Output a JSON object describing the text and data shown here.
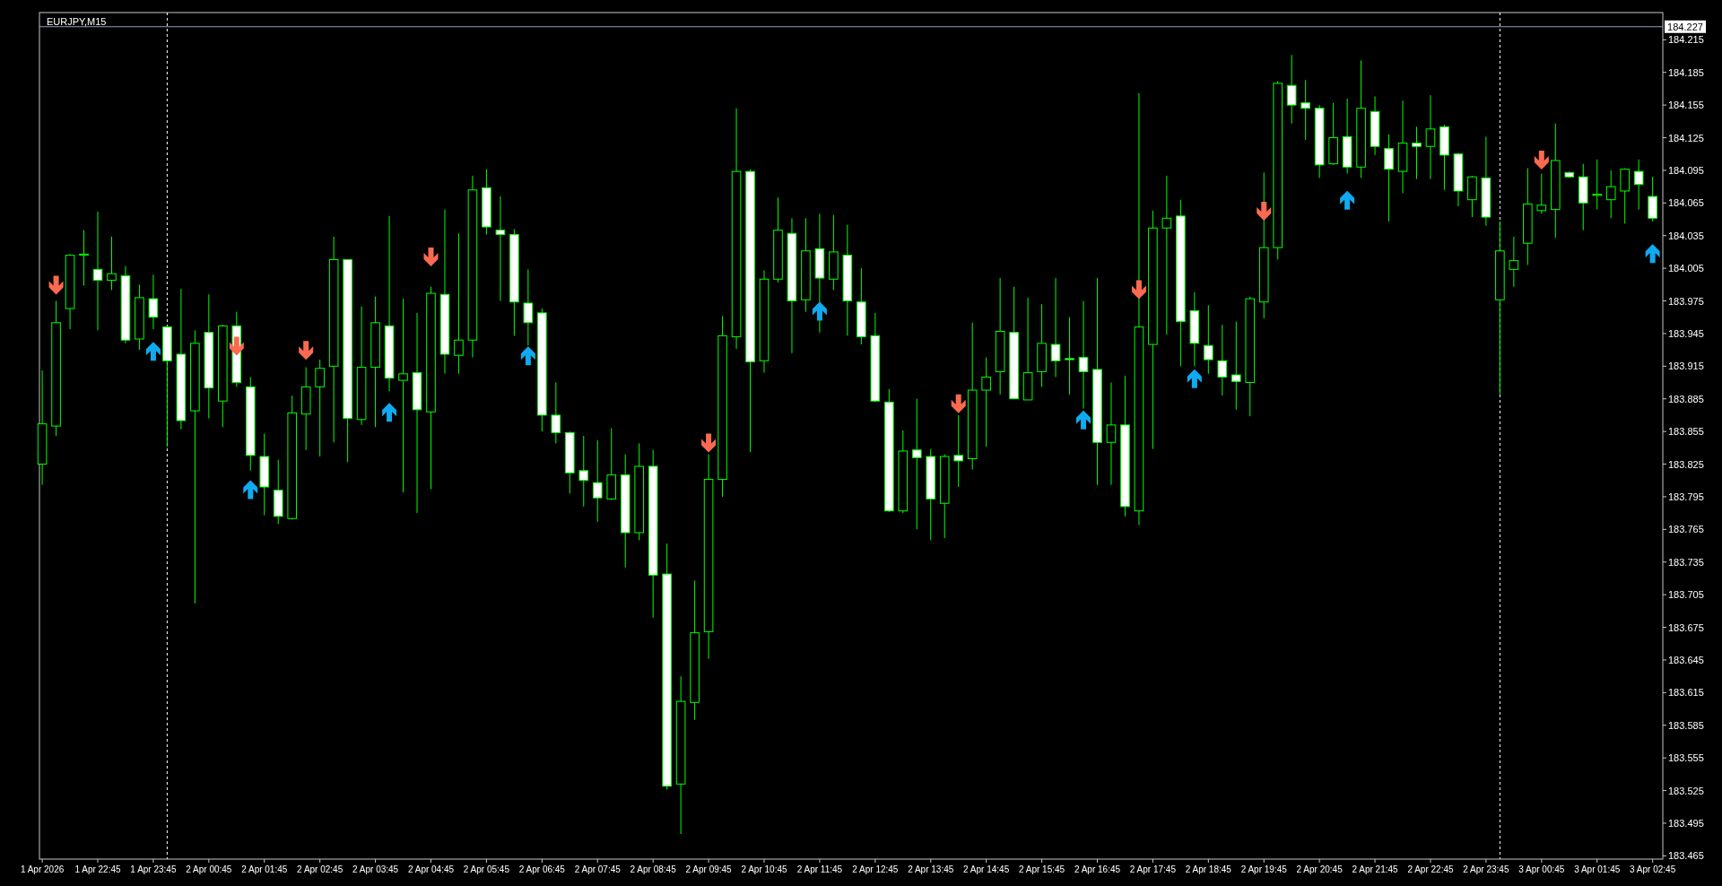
{
  "chart_data": {
    "type": "candlestick",
    "title": "EURJPY,M15",
    "color": "#00ff00",
    "x": [
      "2026-04-01T21:45",
      "2026-04-01T22:00",
      "2026-04-01T22:15",
      "2026-04-01T22:30",
      "2026-04-01T22:45",
      "2026-04-01T23:00",
      "2026-04-01T23:15",
      "2026-04-01T23:30",
      "2026-04-01T23:45",
      "2026-04-02T00:00",
      "2026-04-02T00:15",
      "2026-04-02T00:30",
      "2026-04-02T00:45",
      "2026-04-02T01:00",
      "2026-04-02T01:15",
      "2026-04-02T01:30",
      "2026-04-02T01:45",
      "2026-04-02T02:00",
      "2026-04-02T02:15",
      "2026-04-02T02:30",
      "2026-04-02T02:45",
      "2026-04-02T03:00",
      "2026-04-02T03:15",
      "2026-04-02T03:30",
      "2026-04-02T03:45",
      "2026-04-02T04:00",
      "2026-04-02T04:15",
      "2026-04-02T04:30",
      "2026-04-02T04:45",
      "2026-04-02T05:00",
      "2026-04-02T05:15",
      "2026-04-02T05:30",
      "2026-04-02T05:45",
      "2026-04-02T06:00",
      "2026-04-02T06:15",
      "2026-04-02T06:30",
      "2026-04-02T06:45",
      "2026-04-02T07:00",
      "2026-04-02T07:15",
      "2026-04-02T07:30",
      "2026-04-02T07:45",
      "2026-04-02T08:00",
      "2026-04-02T08:15",
      "2026-04-02T08:30",
      "2026-04-02T08:45",
      "2026-04-02T09:00",
      "2026-04-02T09:15",
      "2026-04-02T09:30",
      "2026-04-02T09:45",
      "2026-04-02T10:00",
      "2026-04-02T10:15",
      "2026-04-02T10:30",
      "2026-04-02T10:45",
      "2026-04-02T11:00",
      "2026-04-02T11:15",
      "2026-04-02T11:30",
      "2026-04-02T11:45",
      "2026-04-02T12:00",
      "2026-04-02T12:15",
      "2026-04-02T12:30",
      "2026-04-02T12:45",
      "2026-04-02T13:00",
      "2026-04-02T13:15",
      "2026-04-02T13:30",
      "2026-04-02T13:45",
      "2026-04-02T14:00",
      "2026-04-02T14:15",
      "2026-04-02T14:30",
      "2026-04-02T14:45",
      "2026-04-02T15:00",
      "2026-04-02T15:15",
      "2026-04-02T15:30",
      "2026-04-02T15:45",
      "2026-04-02T16:00",
      "2026-04-02T16:15",
      "2026-04-02T16:30",
      "2026-04-02T16:45",
      "2026-04-02T17:00",
      "2026-04-02T17:15",
      "2026-04-02T17:30",
      "2026-04-02T17:45",
      "2026-04-02T18:00",
      "2026-04-02T18:15",
      "2026-04-02T18:30",
      "2026-04-02T18:45",
      "2026-04-02T19:00",
      "2026-04-02T19:15",
      "2026-04-02T19:30",
      "2026-04-02T19:45",
      "2026-04-02T20:00",
      "2026-04-02T20:15",
      "2026-04-02T20:30",
      "2026-04-02T20:45",
      "2026-04-02T21:00",
      "2026-04-02T21:15",
      "2026-04-02T21:30",
      "2026-04-02T21:45",
      "2026-04-02T22:00",
      "2026-04-02T22:15",
      "2026-04-02T22:30",
      "2026-04-02T22:45",
      "2026-04-02T23:00",
      "2026-04-02T23:15",
      "2026-04-02T23:30",
      "2026-04-02T23:45",
      "2026-04-03T00:00",
      "2026-04-03T00:15",
      "2026-04-03T00:30",
      "2026-04-03T00:45",
      "2026-04-03T01:00",
      "2026-04-03T01:15",
      "2026-04-03T01:30",
      "2026-04-03T01:45",
      "2026-04-03T02:00",
      "2026-04-03T02:15",
      "2026-04-03T02:30",
      "2026-04-03T02:45"
    ],
    "ohlc": [
      [
        183.825,
        183.911,
        183.806,
        183.862
      ],
      [
        183.86,
        183.975,
        183.851,
        183.955
      ],
      [
        183.968,
        184.018,
        183.949,
        184.017
      ],
      [
        184.017,
        184.04,
        183.989,
        184.018
      ],
      [
        184.004,
        184.057,
        183.948,
        183.994
      ],
      [
        183.994,
        184.034,
        183.985,
        184.0
      ],
      [
        183.998,
        184.007,
        183.936,
        183.939
      ],
      [
        183.94,
        183.99,
        183.93,
        183.978
      ],
      [
        183.977,
        183.999,
        183.949,
        183.96
      ],
      [
        183.951,
        183.952,
        183.841,
        183.92
      ],
      [
        183.926,
        183.986,
        183.857,
        183.865
      ],
      [
        183.874,
        183.948,
        183.697,
        183.936
      ],
      [
        183.946,
        183.981,
        183.867,
        183.895
      ],
      [
        183.883,
        183.953,
        183.859,
        183.952
      ],
      [
        183.952,
        183.965,
        183.896,
        183.9
      ],
      [
        183.896,
        183.905,
        183.819,
        183.833
      ],
      [
        183.832,
        183.853,
        183.778,
        183.804
      ],
      [
        183.801,
        183.829,
        183.77,
        183.777
      ],
      [
        183.775,
        183.888,
        183.774,
        183.872
      ],
      [
        183.871,
        183.914,
        183.838,
        183.896
      ],
      [
        183.896,
        183.921,
        183.832,
        183.913
      ],
      [
        183.915,
        184.034,
        183.845,
        184.013
      ],
      [
        184.013,
        184.013,
        183.827,
        183.867
      ],
      [
        183.866,
        183.97,
        183.861,
        183.914
      ],
      [
        183.914,
        183.979,
        183.859,
        183.955
      ],
      [
        183.952,
        184.053,
        183.892,
        183.904
      ],
      [
        183.902,
        183.977,
        183.799,
        183.908
      ],
      [
        183.909,
        183.964,
        183.78,
        183.875
      ],
      [
        183.873,
        183.988,
        183.802,
        183.982
      ],
      [
        183.981,
        184.059,
        183.908,
        183.926
      ],
      [
        183.925,
        184.037,
        183.908,
        183.939
      ],
      [
        183.939,
        184.09,
        183.923,
        184.077
      ],
      [
        184.079,
        184.096,
        184.036,
        184.043
      ],
      [
        184.04,
        184.071,
        183.975,
        184.036
      ],
      [
        184.036,
        184.041,
        183.943,
        183.974
      ],
      [
        183.973,
        184.004,
        183.934,
        183.955
      ],
      [
        183.964,
        183.968,
        183.855,
        183.87
      ],
      [
        183.87,
        183.9,
        183.844,
        183.854
      ],
      [
        183.854,
        183.855,
        183.798,
        183.817
      ],
      [
        183.819,
        183.851,
        183.786,
        183.81
      ],
      [
        183.808,
        183.847,
        183.772,
        183.794
      ],
      [
        183.793,
        183.858,
        183.792,
        183.815
      ],
      [
        183.815,
        183.834,
        183.73,
        183.762
      ],
      [
        183.762,
        183.844,
        183.755,
        183.823
      ],
      [
        183.823,
        183.838,
        183.684,
        183.723
      ],
      [
        183.724,
        183.752,
        183.526,
        183.529
      ],
      [
        183.531,
        183.63,
        183.485,
        183.607
      ],
      [
        183.606,
        183.718,
        183.59,
        183.67
      ],
      [
        183.671,
        183.834,
        183.646,
        183.811
      ],
      [
        183.811,
        183.961,
        183.795,
        183.943
      ],
      [
        183.942,
        184.152,
        183.931,
        184.094
      ],
      [
        184.094,
        184.096,
        183.836,
        183.919
      ],
      [
        183.92,
        184.003,
        183.909,
        183.995
      ],
      [
        183.995,
        184.07,
        183.992,
        184.04
      ],
      [
        184.037,
        184.051,
        183.927,
        183.975
      ],
      [
        183.976,
        184.051,
        183.965,
        184.021
      ],
      [
        184.023,
        184.055,
        183.946,
        183.996
      ],
      [
        183.995,
        184.054,
        183.985,
        184.02
      ],
      [
        184.017,
        184.045,
        183.943,
        183.975
      ],
      [
        183.974,
        184.005,
        183.935,
        183.942
      ],
      [
        183.943,
        183.964,
        183.882,
        183.883
      ],
      [
        183.882,
        183.894,
        183.781,
        183.782
      ],
      [
        183.782,
        183.856,
        183.78,
        183.837
      ],
      [
        183.838,
        183.885,
        183.765,
        183.831
      ],
      [
        183.832,
        183.839,
        183.755,
        183.793
      ],
      [
        183.789,
        183.834,
        183.757,
        183.832
      ],
      [
        183.833,
        183.87,
        183.804,
        183.828
      ],
      [
        183.83,
        183.955,
        183.82,
        183.893
      ],
      [
        183.893,
        183.923,
        183.841,
        183.905
      ],
      [
        183.91,
        183.996,
        183.889,
        183.947
      ],
      [
        183.946,
        183.988,
        183.885,
        183.885
      ],
      [
        183.884,
        183.978,
        183.884,
        183.909
      ],
      [
        183.91,
        183.972,
        183.896,
        183.936
      ],
      [
        183.935,
        183.996,
        183.905,
        183.92
      ],
      [
        183.922,
        183.96,
        183.889,
        183.921
      ],
      [
        183.923,
        183.975,
        183.876,
        183.91
      ],
      [
        183.912,
        183.996,
        183.806,
        183.845
      ],
      [
        183.845,
        183.9,
        183.806,
        183.861
      ],
      [
        183.861,
        183.906,
        183.777,
        183.786
      ],
      [
        183.782,
        184.166,
        183.769,
        183.951
      ],
      [
        183.935,
        184.058,
        183.839,
        184.042
      ],
      [
        184.042,
        184.09,
        183.944,
        184.051
      ],
      [
        184.053,
        184.068,
        183.915,
        183.956
      ],
      [
        183.966,
        183.983,
        183.915,
        183.936
      ],
      [
        183.934,
        183.971,
        183.908,
        183.921
      ],
      [
        183.92,
        183.953,
        183.888,
        183.905
      ],
      [
        183.907,
        183.956,
        183.875,
        183.901
      ],
      [
        183.9,
        183.979,
        183.869,
        183.977
      ],
      [
        183.974,
        184.093,
        183.959,
        184.024
      ],
      [
        184.024,
        184.177,
        184.013,
        184.175
      ],
      [
        184.173,
        184.201,
        184.138,
        184.155
      ],
      [
        184.157,
        184.178,
        184.123,
        184.152
      ],
      [
        184.152,
        184.155,
        184.088,
        184.1
      ],
      [
        184.101,
        184.157,
        184.1,
        184.125
      ],
      [
        184.126,
        184.161,
        184.092,
        184.098
      ],
      [
        184.098,
        184.196,
        184.088,
        184.152
      ],
      [
        184.149,
        184.163,
        184.109,
        184.117
      ],
      [
        184.115,
        184.128,
        184.048,
        184.096
      ],
      [
        184.094,
        184.159,
        184.074,
        184.12
      ],
      [
        184.12,
        184.135,
        184.087,
        184.117
      ],
      [
        184.117,
        184.164,
        184.087,
        184.133
      ],
      [
        184.135,
        184.137,
        184.077,
        184.109
      ],
      [
        184.11,
        184.111,
        184.062,
        184.076
      ],
      [
        184.068,
        184.09,
        184.052,
        184.089
      ],
      [
        184.088,
        184.126,
        184.044,
        184.052
      ],
      [
        183.976,
        184.048,
        183.889,
        184.021
      ],
      [
        184.004,
        184.034,
        183.988,
        184.012
      ],
      [
        184.028,
        184.097,
        184.008,
        184.064
      ],
      [
        184.058,
        184.092,
        184.055,
        184.063
      ],
      [
        184.059,
        184.138,
        184.033,
        184.104
      ],
      [
        184.093,
        184.094,
        184.088,
        184.089
      ],
      [
        184.089,
        184.101,
        184.04,
        184.065
      ],
      [
        184.072,
        184.105,
        184.059,
        184.073
      ],
      [
        184.068,
        184.095,
        184.051,
        184.08
      ],
      [
        184.076,
        184.097,
        184.046,
        184.096
      ],
      [
        184.094,
        184.105,
        184.059,
        184.082
      ],
      [
        184.071,
        184.089,
        184.048,
        184.051
      ]
    ],
    "series": [
      {
        "type": "scatter",
        "color": "#fa6a50",
        "marker": "triangle",
        "x": [
          "2026-04-01T22:00",
          "2026-04-02T01:15",
          "2026-04-02T02:30",
          "2026-04-02T04:45",
          "2026-04-02T09:45",
          "2026-04-02T14:15",
          "2026-04-02T17:30",
          "2026-04-02T19:45",
          "2026-04-03T00:45"
        ],
        "values": [
          183.989,
          183.933,
          183.929,
          184.015,
          183.844,
          183.88,
          183.985,
          184.057,
          184.104
        ]
      },
      {
        "type": "scatter",
        "color": "#10aaf0",
        "marker": "triangle",
        "x": [
          "2026-04-01T23:45",
          "2026-04-02T01:30",
          "2026-04-02T04:00",
          "2026-04-02T06:30",
          "2026-04-02T11:45",
          "2026-04-02T16:30",
          "2026-04-02T18:30",
          "2026-04-02T21:15",
          "2026-04-03T02:45"
        ],
        "values": [
          183.929,
          183.802,
          183.873,
          183.925,
          183.966,
          183.866,
          183.904,
          184.068,
          184.019
        ]
      }
    ],
    "ref_lines": [
      {
        "axis": "y",
        "value": 184.227,
        "label": "184.227",
        "color": "#8ea3b8",
        "line_style": "solid"
      },
      {
        "axis": "x",
        "value": "2026-04-02T00:00",
        "color": "#ffffff",
        "line_style": "dashed"
      },
      {
        "axis": "x",
        "value": "2026-04-03T00:00",
        "color": "#ffffff",
        "line_style": "dashed"
      }
    ],
    "xlim": [
      "2026-04-01T21:42",
      "2026-04-03T02:56"
    ],
    "ylim": [
      183.462,
      184.24
    ],
    "xticks": [
      {
        "value": "2026-04-01T21:45",
        "label": "1 Apr 2026"
      },
      {
        "value": "2026-04-01T22:45",
        "label": "1 Apr 22:45"
      },
      {
        "value": "2026-04-01T23:45",
        "label": "1 Apr 23:45"
      },
      {
        "value": "2026-04-02T00:45",
        "label": "2 Apr 00:45"
      },
      {
        "value": "2026-04-02T01:45",
        "label": "2 Apr 01:45"
      },
      {
        "value": "2026-04-02T02:45",
        "label": "2 Apr 02:45"
      },
      {
        "value": "2026-04-02T03:45",
        "label": "2 Apr 03:45"
      },
      {
        "value": "2026-04-02T04:45",
        "label": "2 Apr 04:45"
      },
      {
        "value": "2026-04-02T05:45",
        "label": "2 Apr 05:45"
      },
      {
        "value": "2026-04-02T06:45",
        "label": "2 Apr 06:45"
      },
      {
        "value": "2026-04-02T07:45",
        "label": "2 Apr 07:45"
      },
      {
        "value": "2026-04-02T08:45",
        "label": "2 Apr 08:45"
      },
      {
        "value": "2026-04-02T09:45",
        "label": "2 Apr 09:45"
      },
      {
        "value": "2026-04-02T10:45",
        "label": "2 Apr 10:45"
      },
      {
        "value": "2026-04-02T11:45",
        "label": "2 Apr 11:45"
      },
      {
        "value": "2026-04-02T12:45",
        "label": "2 Apr 12:45"
      },
      {
        "value": "2026-04-02T13:45",
        "label": "2 Apr 13:45"
      },
      {
        "value": "2026-04-02T14:45",
        "label": "2 Apr 14:45"
      },
      {
        "value": "2026-04-02T15:45",
        "label": "2 Apr 15:45"
      },
      {
        "value": "2026-04-02T16:45",
        "label": "2 Apr 16:45"
      },
      {
        "value": "2026-04-02T17:45",
        "label": "2 Apr 17:45"
      },
      {
        "value": "2026-04-02T18:45",
        "label": "2 Apr 18:45"
      },
      {
        "value": "2026-04-02T19:45",
        "label": "2 Apr 19:45"
      },
      {
        "value": "2026-04-02T20:45",
        "label": "2 Apr 20:45"
      },
      {
        "value": "2026-04-02T21:45",
        "label": "2 Apr 21:45"
      },
      {
        "value": "2026-04-02T22:45",
        "label": "2 Apr 22:45"
      },
      {
        "value": "2026-04-02T23:45",
        "label": "2 Apr 23:45"
      },
      {
        "value": "2026-04-03T00:45",
        "label": "3 Apr 00:45"
      },
      {
        "value": "2026-04-03T01:45",
        "label": "3 Apr 01:45"
      },
      {
        "value": "2026-04-03T02:45",
        "label": "3 Apr 02:45"
      }
    ],
    "yticks": [
      184.215,
      184.185,
      184.155,
      184.125,
      184.095,
      184.065,
      184.035,
      184.005,
      183.975,
      183.945,
      183.915,
      183.885,
      183.855,
      183.825,
      183.795,
      183.765,
      183.735,
      183.705,
      183.675,
      183.645,
      183.615,
      183.585,
      183.555,
      183.525,
      183.495,
      183.465
    ],
    "grid": false
  }
}
